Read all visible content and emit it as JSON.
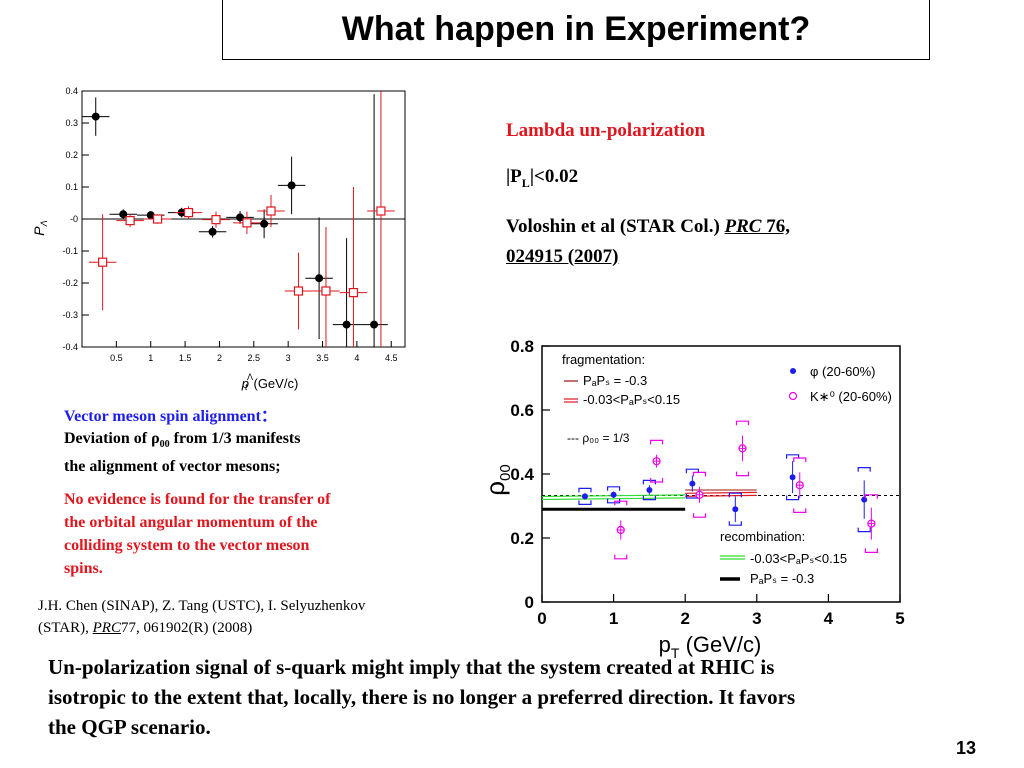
{
  "slide": {
    "title": "What happen in Experiment?",
    "page_number": "13"
  },
  "right_text": {
    "line1": "Lambda un-polarization",
    "line2_a": "|P",
    "line2_sub": "L",
    "line2_b": "|<0.02",
    "line3_a": "Voloshin et al (STAR Col.) ",
    "line3_journal": "PRC",
    "line3_vol": " 76,",
    "line4": "024915 (2007)"
  },
  "left_text": {
    "heading": "Vector meson spin alignment：",
    "dev1": "Deviation of ρ",
    "dev_sub": "00",
    "dev2": "  from 1/3  manifests",
    "dev3": "the alignment of   vector mesons;",
    "red1": "No evidence is found for the transfer of",
    "red2": "the orbital angular momentum of the",
    "red3": "colliding system to the vector meson",
    "red4": "spins.",
    "cite1": "J.H. Chen (SINAP), Z. Tang (USTC), I. Selyuzhenkov",
    "cite2a": "(STAR), ",
    "cite2_journal": "PRC",
    "cite2b": "77, 061902(R) (2008)"
  },
  "conclusion": {
    "line1": "Un-polarization signal of s-quark might imply that the system created at RHIC is",
    "line2": "isotropic to the extent that, locally, there is no longer a preferred direction. It favors",
    "line3": "the QGP scenario."
  },
  "colors": {
    "red": "#e0161e",
    "blue": "#1d1df0",
    "magenta": "#ee00ee",
    "green": "#33dd33"
  },
  "chart_data": [
    {
      "type": "scatter",
      "title": "",
      "xlabel": "p_t^Λ (GeV/c)",
      "ylabel": "P_Λ",
      "xlim": [
        0,
        4.7
      ],
      "ylim": [
        -0.4,
        0.4
      ],
      "xticks": [
        "0.5",
        "1",
        "1.5",
        "2",
        "2.5",
        "3",
        "3.5",
        "4",
        "4.5"
      ],
      "xtick_values": [
        0.5,
        1,
        1.5,
        2,
        2.5,
        3,
        3.5,
        4,
        4.5
      ],
      "yticks": [
        "0.4",
        "0.3",
        "0.2",
        "0.1",
        "-0",
        "-0.1",
        "-0.2",
        "-0.3",
        "-0.4"
      ],
      "ytick_values": [
        0.4,
        0.3,
        0.2,
        0.1,
        0,
        -0.1,
        -0.2,
        -0.3,
        -0.4
      ],
      "reference_line": 0,
      "series": [
        {
          "marker": "filled-circle",
          "color": "#000000",
          "points": [
            {
              "x": 0.2,
              "y": 0.32,
              "xerr": 0.2,
              "yerr": 0.06
            },
            {
              "x": 0.6,
              "y": 0.015,
              "xerr": 0.2,
              "yerr": 0.015
            },
            {
              "x": 1.0,
              "y": 0.012,
              "xerr": 0.2,
              "yerr": 0.012
            },
            {
              "x": 1.45,
              "y": 0.02,
              "xerr": 0.2,
              "yerr": 0.015
            },
            {
              "x": 1.9,
              "y": -0.04,
              "xerr": 0.2,
              "yerr": 0.018
            },
            {
              "x": 2.3,
              "y": 0.005,
              "xerr": 0.2,
              "yerr": 0.02
            },
            {
              "x": 2.65,
              "y": -0.015,
              "xerr": 0.2,
              "yerr": 0.045
            },
            {
              "x": 3.05,
              "y": 0.105,
              "xerr": 0.2,
              "yerr": 0.09
            },
            {
              "x": 3.45,
              "y": -0.185,
              "xerr": 0.2,
              "yerr": 0.19
            },
            {
              "x": 3.85,
              "y": -0.33,
              "xerr": 0.2,
              "yerr": 0.27
            },
            {
              "x": 4.25,
              "y": -0.33,
              "xerr": 0.2,
              "yerr": 0.72
            }
          ]
        },
        {
          "marker": "open-square",
          "color": "#e0161e",
          "points": [
            {
              "x": 0.3,
              "y": -0.135,
              "xerr": 0.2,
              "yerr": 0.15
            },
            {
              "x": 0.7,
              "y": -0.005,
              "xerr": 0.2,
              "yerr": 0.02
            },
            {
              "x": 1.1,
              "y": 0.0,
              "xerr": 0.2,
              "yerr": 0.015
            },
            {
              "x": 1.55,
              "y": 0.02,
              "xerr": 0.2,
              "yerr": 0.02
            },
            {
              "x": 1.95,
              "y": -0.002,
              "xerr": 0.2,
              "yerr": 0.025
            },
            {
              "x": 2.4,
              "y": -0.012,
              "xerr": 0.2,
              "yerr": 0.035
            },
            {
              "x": 2.75,
              "y": 0.025,
              "xerr": 0.2,
              "yerr": 0.05
            },
            {
              "x": 3.15,
              "y": -0.225,
              "xerr": 0.2,
              "yerr": 0.12
            },
            {
              "x": 3.55,
              "y": -0.225,
              "xerr": 0.2,
              "yerr": 0.2
            },
            {
              "x": 3.95,
              "y": -0.23,
              "xerr": 0.2,
              "yerr": 0.33
            },
            {
              "x": 4.35,
              "y": 0.025,
              "xerr": 0.2,
              "yerr": 0.6
            }
          ]
        }
      ]
    },
    {
      "type": "scatter",
      "title": "",
      "xlabel": "p_T (GeV/c)",
      "ylabel": "ρ_00",
      "xlim": [
        0,
        5
      ],
      "ylim": [
        0,
        0.8
      ],
      "xticks": [
        "0",
        "1",
        "2",
        "3",
        "4",
        "5"
      ],
      "yticks": [
        "0",
        "0.2",
        "0.4",
        "0.6",
        "0.8"
      ],
      "legend_position": "inside",
      "legend": {
        "frag_header": "fragmentation:",
        "frag1": "PₐPₛ = -0.3",
        "frag2": "-0.03<PₐPₛ<0.15",
        "ref": "--- ρ₀₀ = 1/3",
        "phi": "φ    (20-60%)",
        "kstar": "K∗⁰ (20-60%)",
        "rec_header": "recombination:",
        "rec1": "-0.03<PₐPₛ<0.15",
        "rec2": "PₐPₛ = -0.3"
      },
      "reference_line": 0.333,
      "series": [
        {
          "name": "φ (20-60%)",
          "marker": "filled-circle",
          "color": "#1d1df0",
          "points": [
            {
              "x": 0.6,
              "y": 0.33,
              "err": 0.01,
              "sys": 0.025
            },
            {
              "x": 1.0,
              "y": 0.335,
              "err": 0.01,
              "sys": 0.025
            },
            {
              "x": 1.5,
              "y": 0.35,
              "err": 0.015,
              "sys": 0.03
            },
            {
              "x": 2.1,
              "y": 0.37,
              "err": 0.025,
              "sys": 0.045
            },
            {
              "x": 2.7,
              "y": 0.29,
              "err": 0.04,
              "sys": 0.05
            },
            {
              "x": 3.5,
              "y": 0.39,
              "err": 0.05,
              "sys": 0.07
            },
            {
              "x": 4.5,
              "y": 0.32,
              "err": 0.06,
              "sys": 0.1
            }
          ]
        },
        {
          "name": "K∗⁰ (20-60%)",
          "marker": "open-cross",
          "color": "#ee00ee",
          "points": [
            {
              "x": 1.1,
              "y": 0.225,
              "err": 0.03,
              "sys": 0.09
            },
            {
              "x": 1.6,
              "y": 0.44,
              "err": 0.02,
              "sys": 0.065
            },
            {
              "x": 2.2,
              "y": 0.335,
              "err": 0.025,
              "sys": 0.07
            },
            {
              "x": 2.8,
              "y": 0.48,
              "err": 0.04,
              "sys": 0.085
            },
            {
              "x": 3.6,
              "y": 0.365,
              "err": 0.04,
              "sys": 0.085
            },
            {
              "x": 4.6,
              "y": 0.245,
              "err": 0.05,
              "sys": 0.09
            }
          ]
        }
      ],
      "model_lines": [
        {
          "label": "fragmentation PₐPₛ = -0.3",
          "color": "#b04040",
          "style": "solid",
          "x": [
            2.0,
            3.0
          ],
          "y": [
            0.35,
            0.35
          ]
        },
        {
          "label": "fragmentation -0.03<PₐPₛ<0.15",
          "color": "#e0161e",
          "style": "double",
          "x": [
            2.0,
            3.0
          ],
          "y": [
            0.335,
            0.338
          ]
        },
        {
          "label": "recombination -0.03<PₐPₛ<0.15",
          "color": "#33dd33",
          "style": "double",
          "x": [
            0.0,
            2.0
          ],
          "y": [
            0.325,
            0.33
          ]
        },
        {
          "label": "recombination PₐPₛ = -0.3",
          "color": "#000000",
          "style": "thick",
          "x": [
            0.0,
            2.0
          ],
          "y": [
            0.29,
            0.29
          ]
        }
      ]
    }
  ]
}
